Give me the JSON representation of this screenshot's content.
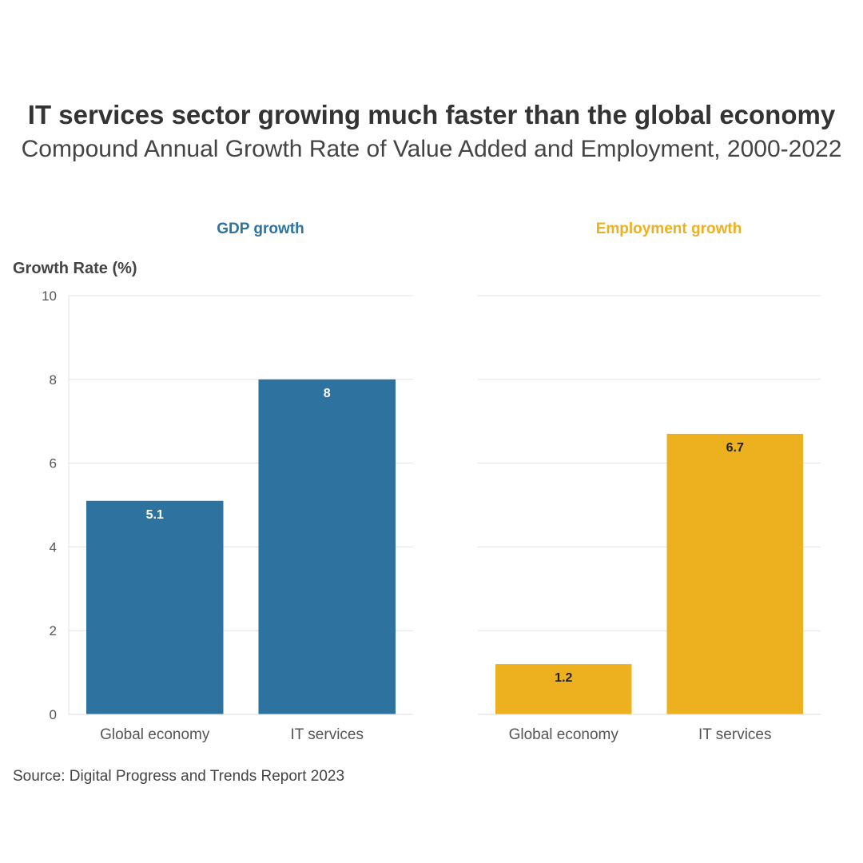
{
  "title": "IT services sector growing much faster than the global economy",
  "subtitle": "Compound Annual Growth Rate of Value Added and Employment, 2000-2022",
  "source": "Source: Digital Progress and Trends Report 2023",
  "chart_data": {
    "type": "bar",
    "ylabel": "Growth Rate (%)",
    "ylim": [
      0,
      10
    ],
    "yticks": [
      "0",
      "2",
      "4",
      "6",
      "8",
      "10"
    ],
    "grid": true,
    "panels": [
      {
        "title": "GDP growth",
        "color": "#2e72a0",
        "label_color": "#ffffff",
        "categories": [
          "Global economy",
          "IT services"
        ],
        "values": [
          5.1,
          8
        ],
        "labels": [
          "5.1",
          "8"
        ]
      },
      {
        "title": "Employment growth",
        "color": "#edb01f",
        "label_color": "#222222",
        "categories": [
          "Global economy",
          "IT services"
        ],
        "values": [
          1.2,
          6.7
        ],
        "labels": [
          "1.2",
          "6.7"
        ]
      }
    ]
  }
}
